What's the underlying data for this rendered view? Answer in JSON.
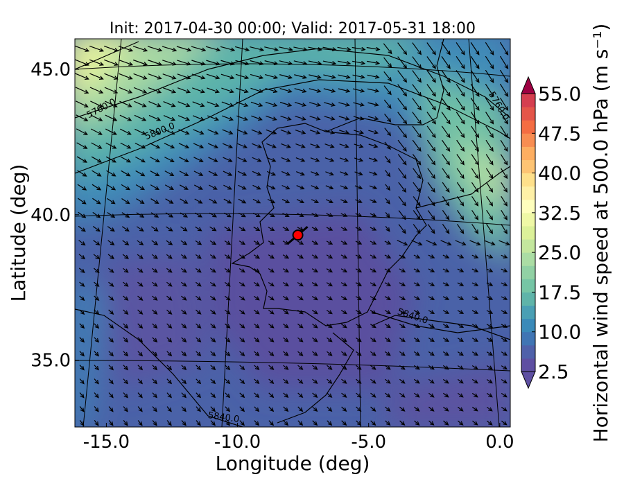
{
  "chart_data": {
    "type": "map",
    "title": "Init: 2017-04-30 00:00; Valid: 2017-05-31 18:00",
    "x_label": "Longitude (deg)",
    "y_label": "Latitude (deg)",
    "xlim": [
      -16.2,
      0.4
    ],
    "ylim": [
      32.7,
      46.05
    ],
    "xticks": [
      {
        "value": -15,
        "label": "-15.0"
      },
      {
        "value": -10,
        "label": "-10.0"
      },
      {
        "value": -5,
        "label": "-5.0"
      },
      {
        "value": 0,
        "label": "0.0"
      }
    ],
    "yticks": [
      {
        "value": 35,
        "label": "35.0"
      },
      {
        "value": 40,
        "label": "40.0"
      },
      {
        "value": 45,
        "label": "45.0"
      }
    ],
    "contour_labels": [
      "5760.0",
      "5800.0",
      "5840.0"
    ],
    "marker": {
      "x": -7.7,
      "y": 39.3,
      "color": "#ff0000"
    },
    "colorbar": {
      "label": "Horizontal wind speed at 500.0 hPa (m s⁻¹)",
      "lim": [
        2.5,
        55
      ],
      "ticks": [
        2.5,
        10,
        17.5,
        25,
        32.5,
        40,
        47.5,
        55
      ],
      "tick_labels": [
        "2.5",
        "10.0",
        "17.5",
        "25.0",
        "32.5",
        "40.0",
        "47.5",
        "55.0"
      ],
      "colors": [
        "#5e4fa2",
        "#4f61aa",
        "#4075b4",
        "#3a8ab9",
        "#4a9fb4",
        "#5fb4a9",
        "#76c5a5",
        "#91d1a4",
        "#abdda4",
        "#c4e79e",
        "#dcf199",
        "#eff8a6",
        "#fefebd",
        "#fef0a7",
        "#fee08b",
        "#fdc474",
        "#fdae61",
        "#f88d52",
        "#f46d43",
        "#e45549",
        "#d53e4f"
      ],
      "extend_colors": [
        "#5e4fa2",
        "#9e0142"
      ]
    }
  }
}
